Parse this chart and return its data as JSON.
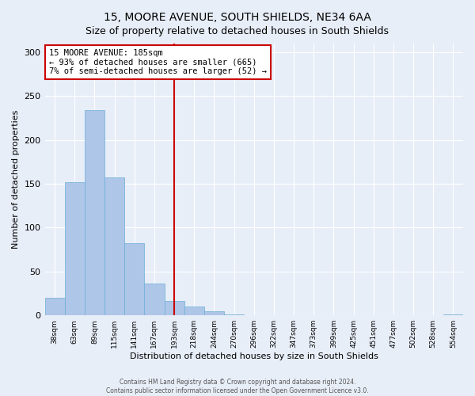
{
  "title": "15, MOORE AVENUE, SOUTH SHIELDS, NE34 6AA",
  "subtitle": "Size of property relative to detached houses in South Shields",
  "xlabel": "Distribution of detached houses by size in South Shields",
  "ylabel": "Number of detached properties",
  "bin_labels": [
    "38sqm",
    "63sqm",
    "89sqm",
    "115sqm",
    "141sqm",
    "167sqm",
    "193sqm",
    "218sqm",
    "244sqm",
    "270sqm",
    "296sqm",
    "322sqm",
    "347sqm",
    "373sqm",
    "399sqm",
    "425sqm",
    "451sqm",
    "477sqm",
    "502sqm",
    "528sqm",
    "554sqm"
  ],
  "bar_values": [
    20,
    152,
    234,
    157,
    82,
    36,
    16,
    10,
    5,
    1,
    0,
    0,
    0,
    0,
    0,
    0,
    0,
    0,
    0,
    0,
    1
  ],
  "bar_color": "#aec6e8",
  "bar_edge_color": "#6baed6",
  "vline_x": 6.0,
  "vline_color": "#cc0000",
  "annotation_text": "15 MOORE AVENUE: 185sqm\n← 93% of detached houses are smaller (665)\n7% of semi-detached houses are larger (52) →",
  "annotation_box_color": "#ffffff",
  "annotation_box_edge": "#cc0000",
  "ylim": [
    0,
    310
  ],
  "yticks": [
    0,
    50,
    100,
    150,
    200,
    250,
    300
  ],
  "footer1": "Contains HM Land Registry data © Crown copyright and database right 2024.",
  "footer2": "Contains public sector information licensed under the Open Government Licence v3.0.",
  "bg_color": "#e8eef8",
  "plot_bg_color": "#e8eef8",
  "title_fontsize": 10,
  "subtitle_fontsize": 9
}
